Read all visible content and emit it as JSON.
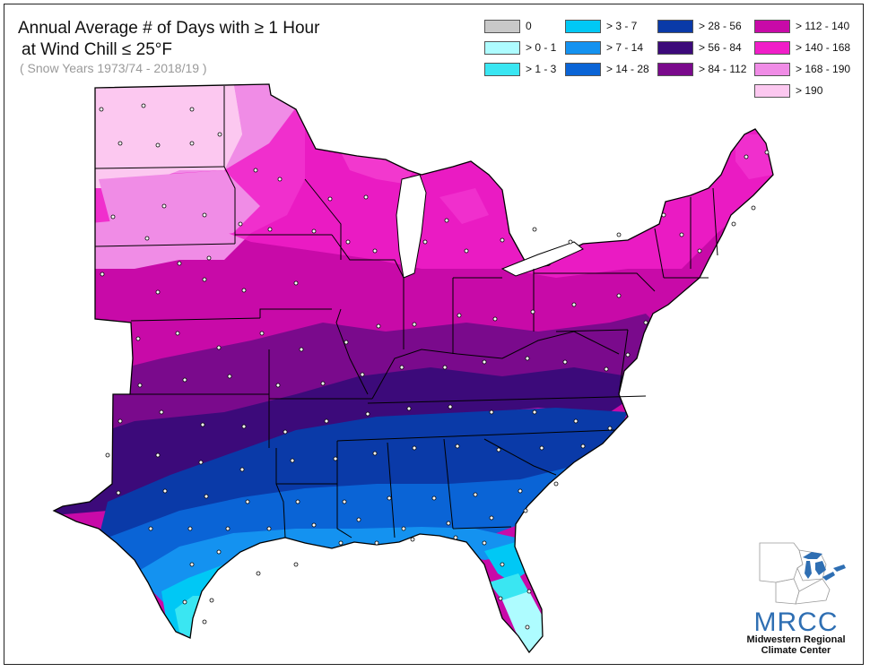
{
  "title_line1": "Annual Average # of Days with ≥ 1 Hour",
  "title_line2": "at Wind Chill ≤ 25°F",
  "subtitle": "( Snow Years 1973/74 - 2018/19 )",
  "legend": [
    {
      "label": "0",
      "color": "#c8c8c8"
    },
    {
      "label": "> 0 - 1",
      "color": "#aefcff"
    },
    {
      "label": "> 1 - 3",
      "color": "#3ae6f2"
    },
    {
      "label": "> 3 - 7",
      "color": "#00c8f5"
    },
    {
      "label": "> 7 - 14",
      "color": "#1492f0"
    },
    {
      "label": "> 14 - 28",
      "color": "#0a64d6"
    },
    {
      "label": "> 28 - 56",
      "color": "#0a3aa8"
    },
    {
      "label": "> 56 - 84",
      "color": "#3c0a7a"
    },
    {
      "label": "> 84 - 112",
      "color": "#7a0a8c"
    },
    {
      "label": "> 112 - 140",
      "color": "#c80aa8"
    },
    {
      "label": "> 140 - 168",
      "color": "#f01ec8"
    },
    {
      "label": "> 168 - 190",
      "color": "#f08ce6"
    },
    {
      "label": "> 190",
      "color": "#fcc8f0"
    }
  ],
  "logo": {
    "acronym": "MRCC",
    "line1": "Midwestern Regional",
    "line2": "Climate Center"
  }
}
